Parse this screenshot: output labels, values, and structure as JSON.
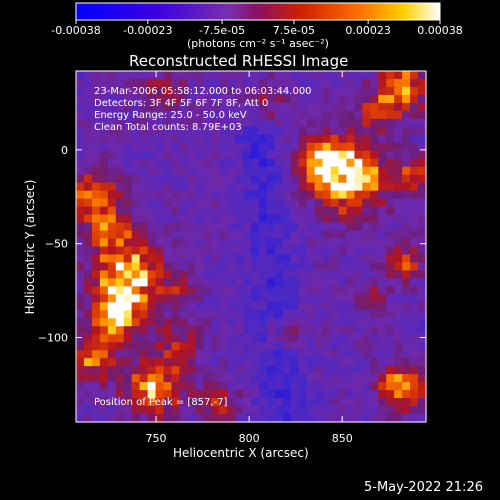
{
  "colorbar": {
    "tick_labels": [
      "-0.00038",
      "-0.00023",
      "-7.5e-05",
      "7.5e-05",
      "0.00023",
      "0.00038"
    ],
    "tick_values": [
      -0.00038,
      -0.00023,
      -7.5e-05,
      7.5e-05,
      0.00023,
      0.00038
    ],
    "range": [
      -0.00038,
      0.00038
    ],
    "units": "(photons cm⁻² s⁻¹ asec⁻²)",
    "colors": [
      "#0000ff",
      "#5a00d0",
      "#7a2ab0",
      "#9a1a40",
      "#e04000",
      "#ff9000",
      "#ffd000",
      "#ffffff"
    ]
  },
  "chart_data": {
    "type": "heatmap",
    "title": "Reconstructed RHESSI Image",
    "xlabel": "Heliocentric X (arcsec)",
    "ylabel": "Heliocentric Y (arcsec)",
    "xlim": [
      707,
      895
    ],
    "ylim": [
      -145,
      42
    ],
    "xticks": [
      750,
      800,
      850
    ],
    "yticks": [
      0,
      -50,
      -100
    ],
    "annotations": {
      "time": "23-Mar-2006 05:58:12.000 to 06:03:44.000",
      "detectors": "Detectors: 3F 4F 5F 6F 7F 8F, Att 0",
      "energy": "Energy Range: 25.0 - 50.0 keV",
      "clean": "Clean    Total counts: 8.79E+03",
      "peak": "Position of Peak = [857,-7]"
    },
    "peak_position": [
      857,
      -7
    ],
    "grid": false,
    "z_ranges": [
      -0.00038,
      0.00038
    ]
  },
  "footer": {
    "date": "5-May-2022 21:26"
  }
}
